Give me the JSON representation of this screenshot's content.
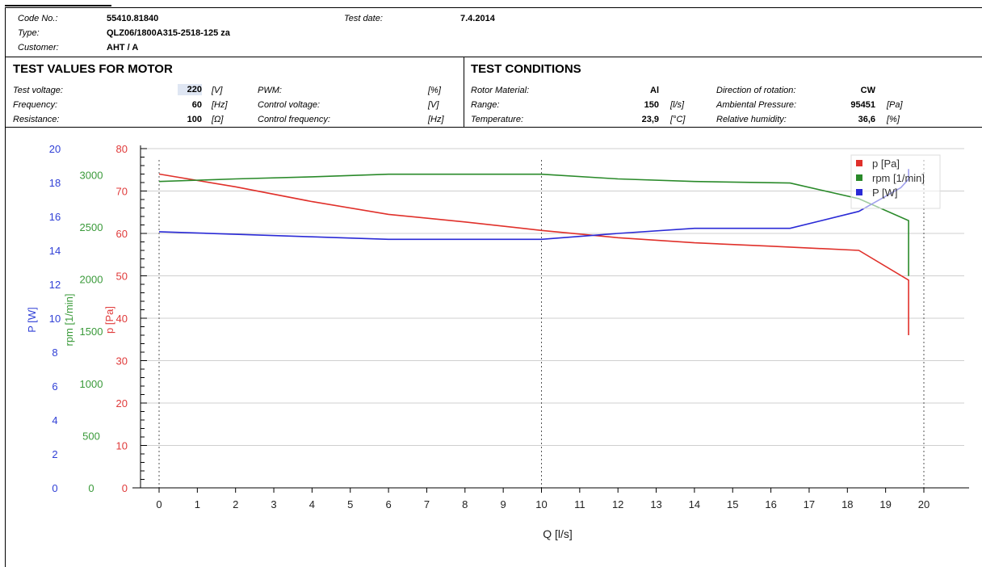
{
  "header": {
    "code_label": "Code No.:",
    "code_value": "55410.81840",
    "test_date_label": "Test date:",
    "test_date_value": "7.4.2014",
    "type_label": "Type:",
    "type_value": "QLZ06/1800A315-2518-125 za",
    "customer_label": "Customer:",
    "customer_value": "AHT / A"
  },
  "motor": {
    "title": "TEST VALUES FOR MOTOR",
    "rows": [
      {
        "label": "Test voltage:",
        "value": "220",
        "unit": "[V]",
        "label2": "PWM:",
        "unit2": "[%]"
      },
      {
        "label": "Frequency:",
        "value": "60",
        "unit": "[Hz]",
        "label2": "Control voltage:",
        "unit2": "[V]"
      },
      {
        "label": "Resistance:",
        "value": "100",
        "unit": "[Ω]",
        "label2": "Control frequency:",
        "unit2": "[Hz]"
      }
    ]
  },
  "conditions": {
    "title": "TEST CONDITIONS",
    "rows": [
      {
        "label": "Rotor Material:",
        "value": "Al",
        "unit": "",
        "label2": "Direction of rotation:",
        "value2": "CW",
        "unit2": ""
      },
      {
        "label": "Range:",
        "value": "150",
        "unit": "[l/s]",
        "label2": "Ambiental Pressure:",
        "value2": "95451",
        "unit2": "[Pa]"
      },
      {
        "label": "Temperature:",
        "value": "23,9",
        "unit": "[°C]",
        "label2": "Relative humidity:",
        "value2": "36,6",
        "unit2": "[%]"
      }
    ]
  },
  "chart_data": {
    "type": "line",
    "xlabel": "Q [l/s]",
    "xlim": [
      0,
      20
    ],
    "x_ticks": [
      0,
      1,
      2,
      3,
      4,
      5,
      6,
      7,
      8,
      9,
      10,
      11,
      12,
      13,
      14,
      15,
      16,
      17,
      18,
      19,
      20
    ],
    "vertical_dotted_lines": [
      0,
      10,
      20
    ],
    "axes": [
      {
        "id": "P",
        "label": "P [W]",
        "color": "#2f3fd6",
        "range": [
          0,
          20
        ],
        "ticks": [
          0,
          2,
          4,
          6,
          8,
          10,
          12,
          14,
          16,
          18,
          20
        ]
      },
      {
        "id": "rpm",
        "label": "rpm [1/min]",
        "color": "#3a9a3a",
        "range": [
          0,
          3250
        ],
        "ticks": [
          0,
          500,
          1000,
          1500,
          2000,
          2500,
          3000
        ]
      },
      {
        "id": "p",
        "label": "p [Pa]",
        "color": "#e03a3a",
        "range": [
          0,
          80
        ],
        "ticks": [
          0,
          10,
          20,
          30,
          40,
          50,
          60,
          70,
          80
        ]
      }
    ],
    "legend_position": "top-right",
    "series": [
      {
        "name": "p [Pa]",
        "axis": "p",
        "color": "#e0302a",
        "points": [
          [
            0,
            74
          ],
          [
            2,
            71
          ],
          [
            4,
            67.5
          ],
          [
            6,
            64.5
          ],
          [
            8,
            62.7
          ],
          [
            10,
            60.7
          ],
          [
            12,
            59
          ],
          [
            14,
            57.8
          ],
          [
            16,
            57
          ],
          [
            18.3,
            56
          ],
          [
            19.6,
            49
          ],
          [
            19.6,
            36
          ]
        ]
      },
      {
        "name": "rpm [1/min]",
        "axis": "rpm",
        "color": "#2a8a2a",
        "points": [
          [
            0,
            2935
          ],
          [
            2,
            2960
          ],
          [
            4,
            2980
          ],
          [
            6,
            3005
          ],
          [
            8,
            3005
          ],
          [
            10,
            3005
          ],
          [
            12,
            2960
          ],
          [
            14,
            2935
          ],
          [
            16.5,
            2920
          ],
          [
            18.3,
            2770
          ],
          [
            19.6,
            2560
          ],
          [
            19.6,
            2030
          ]
        ]
      },
      {
        "name": "P [W]",
        "axis": "P",
        "color": "#2a2ad6",
        "points": [
          [
            0,
            15.1
          ],
          [
            2,
            14.95
          ],
          [
            4,
            14.8
          ],
          [
            6,
            14.65
          ],
          [
            8,
            14.65
          ],
          [
            10,
            14.65
          ],
          [
            12,
            15.0
          ],
          [
            14,
            15.3
          ],
          [
            16.5,
            15.3
          ],
          [
            18.3,
            16.3
          ],
          [
            19.4,
            17.7
          ],
          [
            19.6,
            18.2
          ],
          [
            19.6,
            18.8
          ]
        ]
      }
    ]
  }
}
